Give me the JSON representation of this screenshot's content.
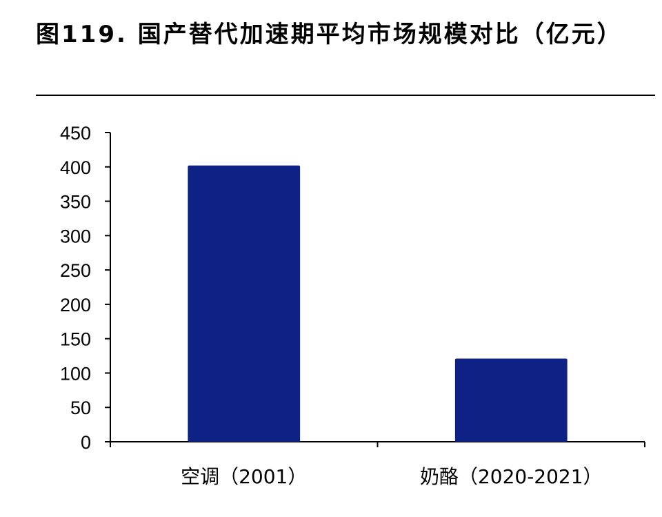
{
  "header": {
    "title": "图119. 国产替代加速期平均市场规模对比（亿元）"
  },
  "chart_data": {
    "type": "bar",
    "title": "图119. 国产替代加速期平均市场规模对比（亿元）",
    "categories": [
      "空调（2001）",
      "奶酪（2020-2021）"
    ],
    "values": [
      402,
      121
    ],
    "xlabel": "",
    "ylabel": "",
    "ylim": [
      0,
      450
    ],
    "yticks": [
      0,
      50,
      100,
      150,
      200,
      250,
      300,
      350,
      400,
      450
    ],
    "grid": false,
    "legend": "none",
    "bar_color": "#0d2284"
  }
}
